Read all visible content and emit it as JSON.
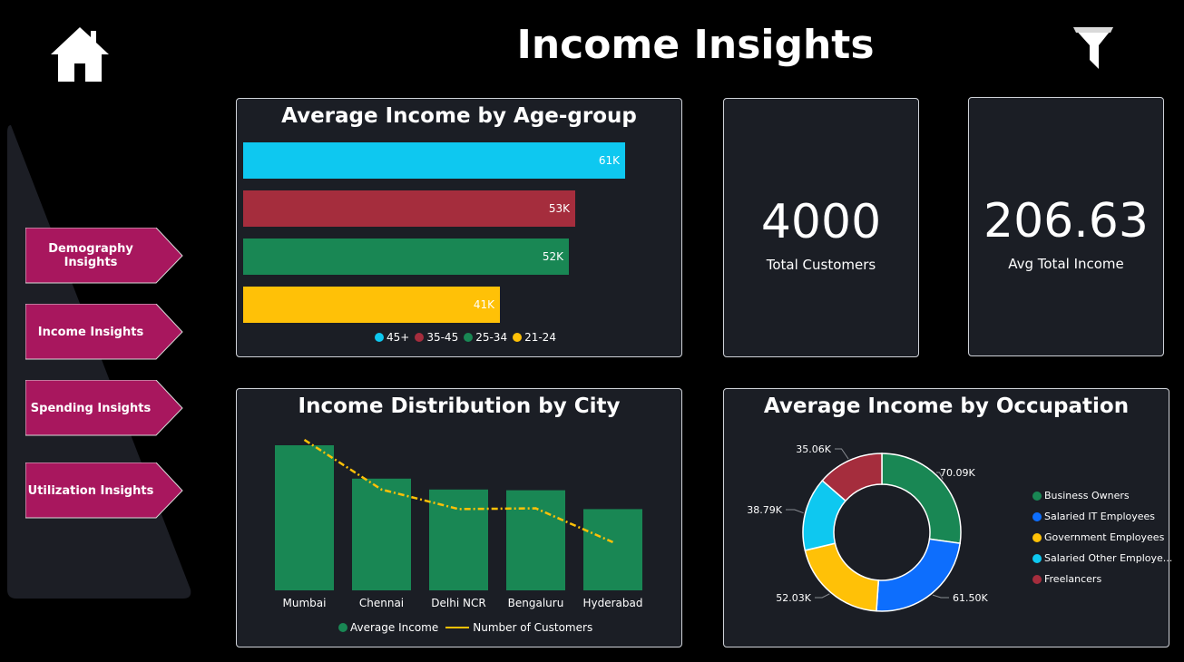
{
  "header": {
    "title": "Income Insights",
    "home_icon": "home-icon",
    "filter_icon": "filter-icon"
  },
  "nav": {
    "items": [
      {
        "label": "Demography Insights"
      },
      {
        "label": "Income Insights"
      },
      {
        "label": "Spending Insights"
      },
      {
        "label": "Utilization Insights"
      }
    ],
    "color": "#a8175e"
  },
  "kpis": [
    {
      "value": "4000",
      "label": "Total Customers"
    },
    {
      "value": "206.63",
      "label": "Avg Total Income"
    }
  ],
  "chart_data": [
    {
      "type": "bar",
      "orientation": "horizontal",
      "title": "Average Income by Age-group",
      "categories": [
        "45+",
        "35-45",
        "25-34",
        "21-24"
      ],
      "values": [
        61000,
        53000,
        52000,
        41000
      ],
      "data_labels": [
        "61K",
        "53K",
        "52K",
        "41K"
      ],
      "colors": [
        "#0ec8f0",
        "#a52d3d",
        "#198754",
        "#ffc107"
      ],
      "xlim": [
        0,
        70000
      ],
      "grid": false,
      "legend": "bottom-center"
    },
    {
      "type": "bar",
      "title": "Income Distribution by City",
      "categories": [
        "Mumbai",
        "Chennai",
        "Delhi NCR",
        "Bengaluru",
        "Hyderabad"
      ],
      "series": [
        {
          "name": "Average Income",
          "type": "bar",
          "color": "#198754",
          "values": [
            100,
            77,
            69.5,
            69,
            56
          ]
        },
        {
          "name": "Number of Customers",
          "type": "line",
          "color": "#ffc107",
          "values": [
            100,
            67,
            54,
            54.5,
            32
          ]
        }
      ],
      "grid": false,
      "legend": "bottom-center"
    },
    {
      "type": "pie",
      "donut": true,
      "title": "Average Income by Occupation",
      "categories": [
        "Business Owners",
        "Salaried IT Employees",
        "Government Employees",
        "Salaried Other Employe...",
        "Freelancers"
      ],
      "values": [
        70.09,
        61.5,
        52.03,
        38.79,
        35.06
      ],
      "data_labels": [
        "70.09K",
        "61.50K",
        "52.03K",
        "38.79K",
        "35.06K"
      ],
      "colors": [
        "#198754",
        "#0d6efd",
        "#ffc107",
        "#0ec8f0",
        "#a52d3d"
      ],
      "legend": "right"
    }
  ]
}
